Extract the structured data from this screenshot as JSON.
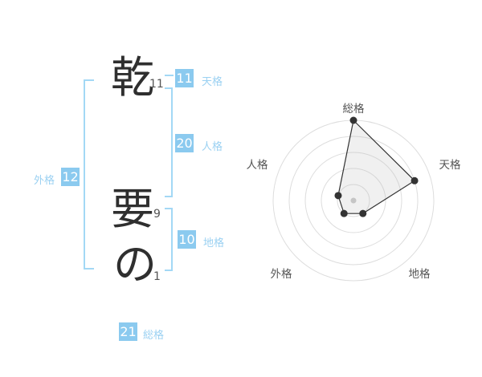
{
  "name_diagram": {
    "characters": [
      {
        "char": "乾",
        "strokes": "11"
      },
      {
        "char": "要",
        "strokes": "9"
      },
      {
        "char": "の",
        "strokes": "1"
      }
    ],
    "scores": {
      "tenkaku": {
        "value": "11",
        "label": "天格"
      },
      "jinkaku": {
        "value": "20",
        "label": "人格"
      },
      "chikaku": {
        "value": "10",
        "label": "地格"
      },
      "gaikaku": {
        "value": "12",
        "label": "外格"
      },
      "soukaku": {
        "value": "21",
        "label": "総格"
      }
    }
  },
  "accent": {
    "badge_bg": "#8BCAEF",
    "badge_text": "#FFFFFF",
    "label_text": "#9BD1F2",
    "bracket_line": "#A3D8F5"
  },
  "chart_data": {
    "type": "radar",
    "categories": [
      "総格",
      "天格",
      "地格",
      "外格",
      "人格"
    ],
    "values": [
      5,
      4,
      1,
      1,
      1
    ],
    "max": 5,
    "rings": 5,
    "grid": "circular",
    "legend": "none",
    "ring_color": "#dddddd",
    "fill_color": "#bbbbbb",
    "fill_opacity": 0.22,
    "line_color": "#333333",
    "point_color": "#333333",
    "center_dot_color": "#c8c8c8",
    "label_color": "#555555"
  }
}
